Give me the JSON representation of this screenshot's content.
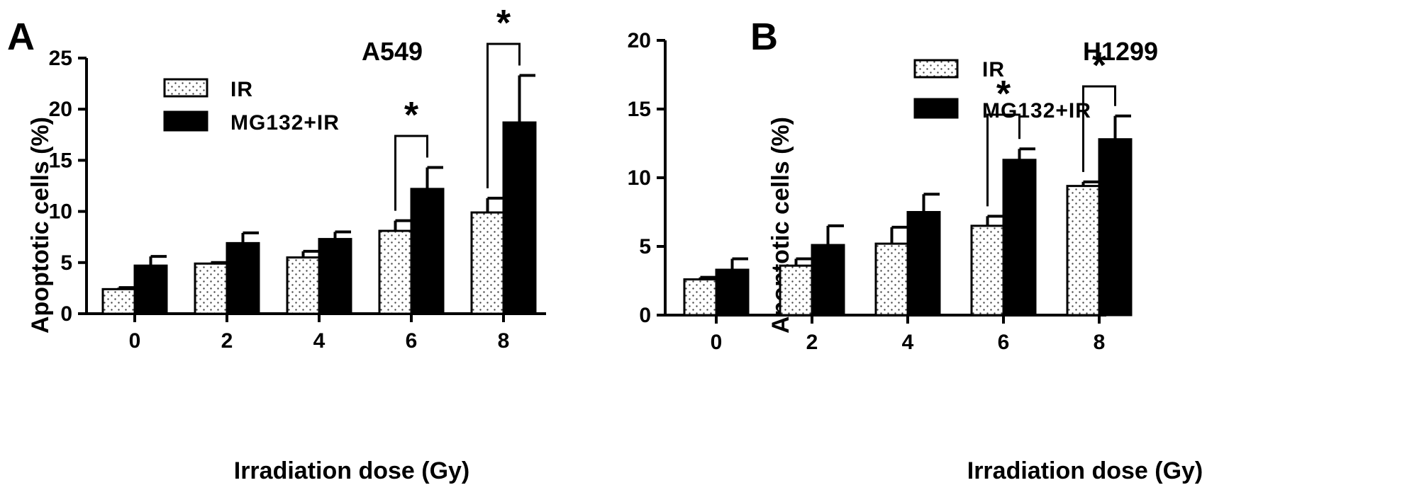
{
  "chart_data": [
    {
      "type": "bar",
      "panel_label": "A",
      "title": "A549",
      "xlabel": "Irradiation dose (Gy)",
      "ylabel": "Apoptotic cells (%)",
      "categories": [
        "0",
        "2",
        "4",
        "6",
        "8"
      ],
      "ylim": [
        0,
        25
      ],
      "yticks": [
        "0",
        "5",
        "10",
        "15",
        "20",
        "25"
      ],
      "series": [
        {
          "name": "IR",
          "values": [
            2.4,
            4.9,
            5.5,
            8.1,
            9.9
          ],
          "errors": [
            0.15,
            0.1,
            0.6,
            1.0,
            1.4
          ],
          "fill": "dotted",
          "color": "#ffffff"
        },
        {
          "name": "MG132+IR",
          "values": [
            4.7,
            6.9,
            7.3,
            12.2,
            18.7
          ],
          "errors": [
            0.9,
            1.0,
            0.7,
            2.1,
            4.6
          ],
          "fill": "solid",
          "color": "#000000"
        }
      ],
      "significance": [
        {
          "category": "6",
          "label": "*"
        },
        {
          "category": "8",
          "label": "*"
        }
      ],
      "legend_position": "top-left"
    },
    {
      "type": "bar",
      "panel_label": "B",
      "title": "H1299",
      "xlabel": "Irradiation dose (Gy)",
      "ylabel": "Apoptotic cells (%)",
      "categories": [
        "0",
        "2",
        "4",
        "6",
        "8"
      ],
      "ylim": [
        0,
        20
      ],
      "yticks": [
        "0",
        "5",
        "10",
        "15",
        "20"
      ],
      "series": [
        {
          "name": "IR",
          "values": [
            2.6,
            3.6,
            5.2,
            6.5,
            9.4
          ],
          "errors": [
            0.15,
            0.5,
            1.2,
            0.7,
            0.3
          ],
          "fill": "dotted",
          "color": "#ffffff"
        },
        {
          "name": "MG132+IR",
          "values": [
            3.3,
            5.1,
            7.5,
            11.3,
            12.8
          ],
          "errors": [
            0.8,
            1.4,
            1.3,
            0.8,
            1.7
          ],
          "fill": "solid",
          "color": "#000000"
        }
      ],
      "significance": [
        {
          "category": "6",
          "label": "*"
        },
        {
          "category": "8",
          "label": "*"
        }
      ],
      "legend_position": "top-left"
    }
  ]
}
